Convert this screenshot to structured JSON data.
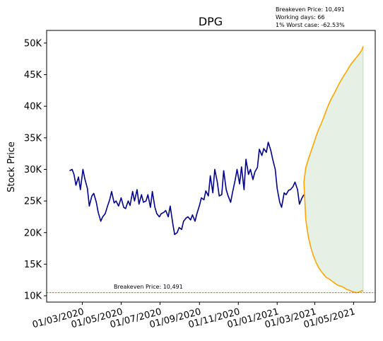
{
  "chart_data": {
    "type": "line",
    "title": "DPG",
    "ylabel": "Stock Price",
    "xlabel": "",
    "ylim": [
      9000,
      52000
    ],
    "xlim": [
      "2020-01-05",
      "2021-06-04"
    ],
    "grid": false,
    "yticks": [
      {
        "value": 10000,
        "label": "10K"
      },
      {
        "value": 15000,
        "label": "15K"
      },
      {
        "value": 20000,
        "label": "20K"
      },
      {
        "value": 25000,
        "label": "25K"
      },
      {
        "value": 30000,
        "label": "30K"
      },
      {
        "value": 35000,
        "label": "35K"
      },
      {
        "value": 40000,
        "label": "40K"
      },
      {
        "value": 45000,
        "label": "45K"
      },
      {
        "value": 50000,
        "label": "50K"
      }
    ],
    "xticks": [
      {
        "value": "2020-03-01",
        "label": "01/03/2020"
      },
      {
        "value": "2020-05-01",
        "label": "01/05/2020"
      },
      {
        "value": "2020-07-01",
        "label": "01/07/2020"
      },
      {
        "value": "2020-09-01",
        "label": "01/09/2020"
      },
      {
        "value": "2020-11-01",
        "label": "01/11/2020"
      },
      {
        "value": "2021-01-01",
        "label": "01/01/2021"
      },
      {
        "value": "2021-03-01",
        "label": "01/03/2021"
      },
      {
        "value": "2021-05-01",
        "label": "01/05/2021"
      }
    ],
    "info_lines": [
      "Breakeven Price: 10,491",
      "Working days: 66",
      "1% Worst case: -62.53%"
    ],
    "breakeven": {
      "value": 10491,
      "label": "Breakeven Price: 10,491",
      "color": "#e8443a"
    },
    "colors": {
      "history": "#00008b",
      "forecast": "#ffa500",
      "band": "#2e8b2e"
    },
    "series": [
      {
        "kind": "history",
        "x": [
          "2020-02-10",
          "2020-02-14",
          "2020-02-17",
          "2020-02-20",
          "2020-02-24",
          "2020-02-27",
          "2020-03-02",
          "2020-03-05",
          "2020-03-09",
          "2020-03-12",
          "2020-03-16",
          "2020-03-19",
          "2020-03-23",
          "2020-03-26",
          "2020-03-30",
          "2020-04-02",
          "2020-04-06",
          "2020-04-09",
          "2020-04-13",
          "2020-04-16",
          "2020-04-20",
          "2020-04-23",
          "2020-04-27",
          "2020-05-01",
          "2020-05-05",
          "2020-05-08",
          "2020-05-12",
          "2020-05-15",
          "2020-05-19",
          "2020-05-22",
          "2020-05-26",
          "2020-05-29",
          "2020-06-02",
          "2020-06-05",
          "2020-06-09",
          "2020-06-12",
          "2020-06-16",
          "2020-06-19",
          "2020-06-23",
          "2020-06-26",
          "2020-06-30",
          "2020-07-03",
          "2020-07-07",
          "2020-07-10",
          "2020-07-14",
          "2020-07-17",
          "2020-07-21",
          "2020-07-24",
          "2020-07-28",
          "2020-07-31",
          "2020-08-04",
          "2020-08-07",
          "2020-08-11",
          "2020-08-14",
          "2020-08-18",
          "2020-08-21",
          "2020-08-25",
          "2020-08-28",
          "2020-09-01",
          "2020-09-04",
          "2020-09-08",
          "2020-09-11",
          "2020-09-15",
          "2020-09-18",
          "2020-09-22",
          "2020-09-25",
          "2020-09-29",
          "2020-10-02",
          "2020-10-06",
          "2020-10-09",
          "2020-10-13",
          "2020-10-16",
          "2020-10-20",
          "2020-10-23",
          "2020-10-27",
          "2020-10-30",
          "2020-11-03",
          "2020-11-06",
          "2020-11-10",
          "2020-11-13",
          "2020-11-17",
          "2020-11-20",
          "2020-11-24",
          "2020-11-27",
          "2020-12-01",
          "2020-12-04",
          "2020-12-08",
          "2020-12-11",
          "2020-12-15",
          "2020-12-18",
          "2020-12-22",
          "2020-12-25",
          "2020-12-29",
          "2021-01-01",
          "2021-01-05",
          "2021-01-08",
          "2021-01-12",
          "2021-01-15",
          "2021-01-19",
          "2021-01-22",
          "2021-01-26",
          "2021-01-29",
          "2021-02-02",
          "2021-02-05",
          "2021-02-09",
          "2021-02-12"
        ],
        "values": [
          29800,
          30000,
          29200,
          27500,
          28800,
          26800,
          30000,
          28500,
          27000,
          24200,
          25800,
          26200,
          24800,
          23200,
          21800,
          22500,
          23000,
          24000,
          25200,
          26500,
          24700,
          25000,
          24200,
          25500,
          24000,
          23800,
          25000,
          24300,
          26500,
          25000,
          26800,
          24500,
          26000,
          24800,
          25000,
          26000,
          24000,
          26500,
          24000,
          23000,
          22500,
          23000,
          23200,
          23500,
          22500,
          24200,
          21500,
          19700,
          20000,
          20800,
          20500,
          21800,
          22300,
          22500,
          22000,
          22800,
          21800,
          23000,
          24300,
          25500,
          25200,
          26600,
          25800,
          29000,
          26300,
          30000,
          28000,
          25800,
          26000,
          29800,
          26800,
          25800,
          24800,
          26400,
          28300,
          30000,
          27700,
          30400,
          26800,
          31600,
          29200,
          30000,
          28400,
          29600,
          30300,
          33200,
          32200,
          33300,
          32700,
          34300,
          33000,
          31600,
          30000,
          27000,
          24800,
          24000,
          26300,
          26000,
          26700,
          26800,
          27300,
          28000,
          26800,
          24500,
          25500,
          26000
        ]
      },
      {
        "kind": "forecast-upper",
        "x": [
          "2021-02-12",
          "2021-02-15",
          "2021-02-19",
          "2021-02-23",
          "2021-02-27",
          "2021-03-03",
          "2021-03-07",
          "2021-03-11",
          "2021-03-15",
          "2021-03-19",
          "2021-03-23",
          "2021-03-27",
          "2021-03-31",
          "2021-04-04",
          "2021-04-08",
          "2021-04-12",
          "2021-04-16",
          "2021-04-20",
          "2021-04-24",
          "2021-04-28",
          "2021-05-02",
          "2021-05-06",
          "2021-05-10",
          "2021-05-14",
          "2021-05-16"
        ],
        "values": [
          28000,
          30300,
          31600,
          32800,
          34000,
          35200,
          36300,
          37200,
          38200,
          39300,
          40300,
          41200,
          41900,
          42700,
          43500,
          44200,
          44900,
          45500,
          46200,
          46800,
          47300,
          47800,
          48300,
          48900,
          49500
        ]
      },
      {
        "kind": "forecast-lower",
        "x": [
          "2021-02-12",
          "2021-02-15",
          "2021-02-19",
          "2021-02-23",
          "2021-02-27",
          "2021-03-03",
          "2021-03-07",
          "2021-03-11",
          "2021-03-15",
          "2021-03-19",
          "2021-03-23",
          "2021-03-27",
          "2021-03-31",
          "2021-04-04",
          "2021-04-08",
          "2021-04-12",
          "2021-04-16",
          "2021-04-20",
          "2021-04-24",
          "2021-04-28",
          "2021-05-02",
          "2021-05-06",
          "2021-05-10",
          "2021-05-14",
          "2021-05-16"
        ],
        "values": [
          28000,
          22000,
          19300,
          17600,
          16300,
          15300,
          14500,
          13900,
          13400,
          12900,
          12700,
          12400,
          12100,
          11800,
          11600,
          11500,
          11300,
          11000,
          10900,
          10700,
          10600,
          10500,
          10600,
          10800,
          10700
        ]
      }
    ]
  }
}
